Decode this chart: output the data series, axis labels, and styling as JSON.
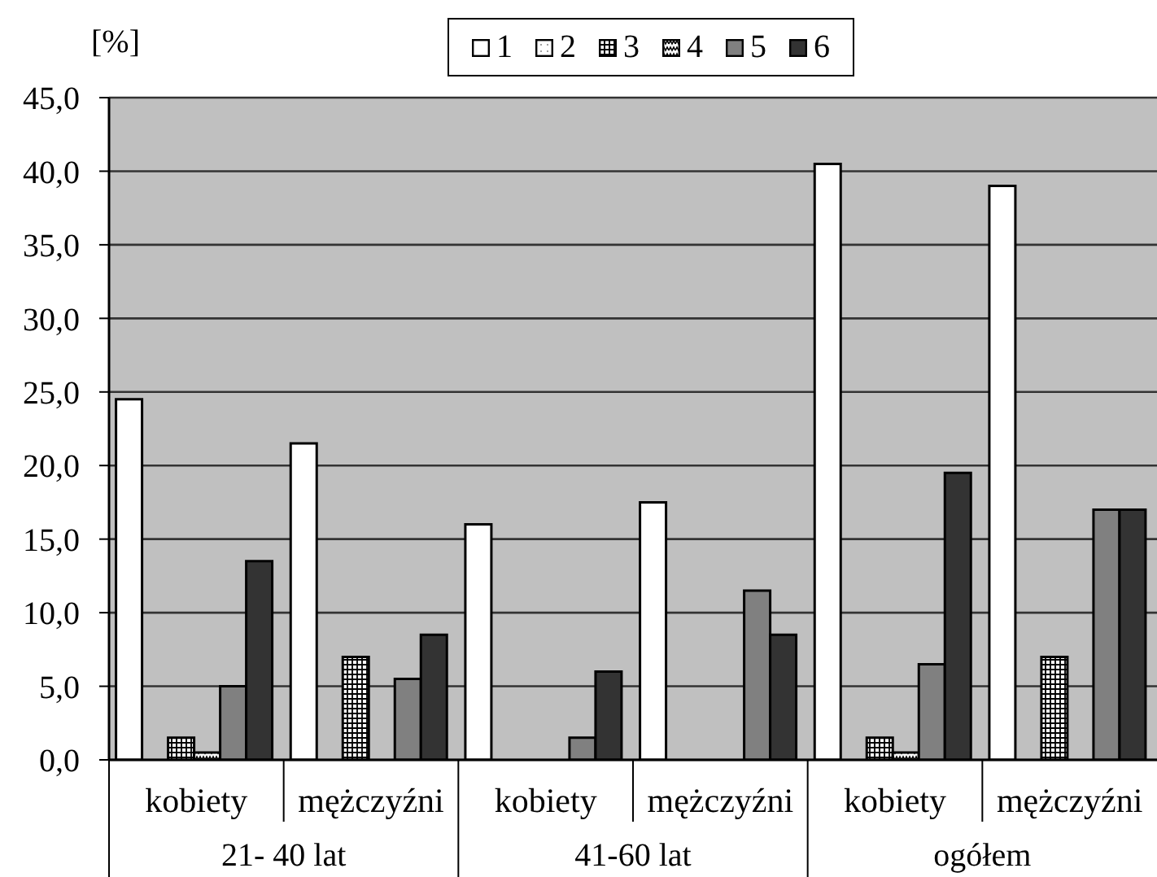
{
  "chart_data": {
    "type": "bar",
    "categories": [
      "kobiety",
      "mężczyźni",
      "kobiety",
      "mężczyźni",
      "kobiety",
      "mężczyźni"
    ],
    "annotations": [
      "21- 40 lat",
      "41-60 lat",
      "ogółem"
    ],
    "ylabel": "[%]",
    "series": [
      {
        "name": "1",
        "color": "#ffffff",
        "values": [
          24.5,
          21.5,
          16.0,
          17.5,
          40.5,
          39.0
        ]
      },
      {
        "name": "2",
        "color": "#ffffff",
        "values": [
          0,
          0,
          0,
          0,
          0,
          0
        ]
      },
      {
        "name": "3",
        "color": "#000000",
        "values": [
          1.5,
          7.0,
          0,
          0,
          1.5,
          7.0
        ]
      },
      {
        "name": "4",
        "color": "#000000",
        "values": [
          0.5,
          0,
          0,
          0,
          0.5,
          0
        ]
      },
      {
        "name": "5",
        "color": "#808080",
        "values": [
          5.0,
          5.5,
          1.5,
          11.5,
          6.5,
          17.0
        ]
      },
      {
        "name": "6",
        "color": "#333333",
        "values": [
          13.5,
          8.5,
          6.0,
          8.5,
          19.5,
          17.0
        ]
      }
    ],
    "ylim": [
      0,
      45
    ],
    "yticks": [
      {
        "value": 0,
        "label": "0,0"
      },
      {
        "value": 5,
        "label": "5,0"
      },
      {
        "value": 10,
        "label": "10,0"
      },
      {
        "value": 15,
        "label": "15,0"
      },
      {
        "value": 20,
        "label": "20,0"
      },
      {
        "value": 25,
        "label": "25,0"
      },
      {
        "value": 30,
        "label": "30,0"
      },
      {
        "value": 35,
        "label": "35,0"
      },
      {
        "value": 40,
        "label": "40,0"
      },
      {
        "value": 45,
        "label": "45,0"
      }
    ],
    "grid": "y",
    "legend": "top"
  }
}
